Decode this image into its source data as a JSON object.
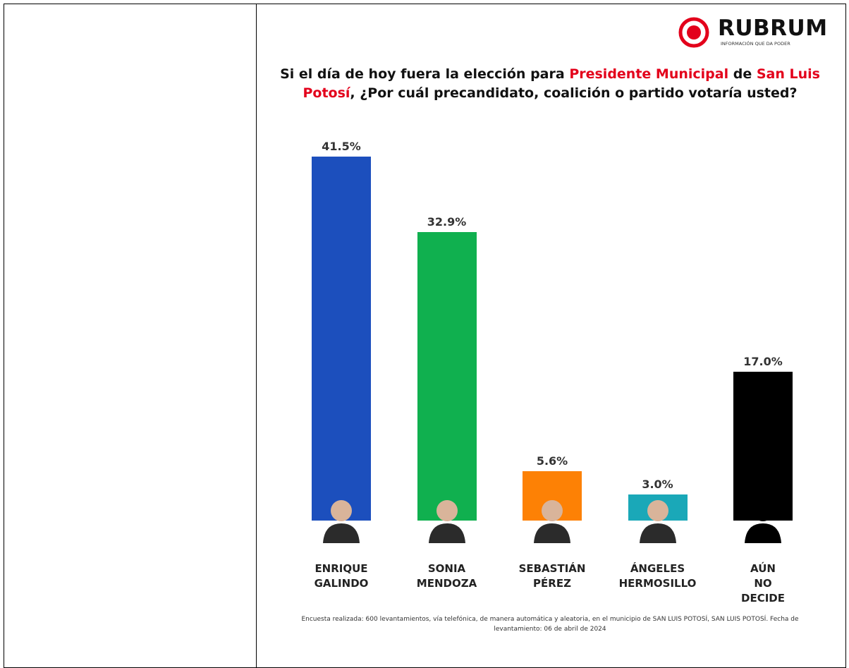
{
  "brand": {
    "name": "RUBRUM",
    "tagline": "INFORMACIÓN QUE DA PODER"
  },
  "chart_data": {
    "type": "bar",
    "title_parts": [
      {
        "text": "Si el día de hoy fuera la elección para ",
        "color": "#111111"
      },
      {
        "text": "Presidente Municipal",
        "color": "#e3001b"
      },
      {
        "text": " de ",
        "color": "#111111"
      },
      {
        "text": "San Luis Potosí",
        "color": "#e3001b"
      },
      {
        "text": ", ¿Por cuál precandidato, coalición o partido votaría usted?",
        "color": "#111111"
      }
    ],
    "categories": [
      "ENRIQUE GALINDO",
      "SONIA MENDOZA",
      "SEBASTIÁN PÉREZ",
      "ÁNGELES HERMOSILLO",
      "AÚN NO DECIDE"
    ],
    "values": [
      41.5,
      32.9,
      5.6,
      3.0,
      17.0
    ],
    "value_labels": [
      "41.5%",
      "32.9%",
      "5.6%",
      "3.0%",
      "17.0%"
    ],
    "colors": [
      "#1c4fbd",
      "#10b04f",
      "#fd8105",
      "#1aa8b8",
      "#000000"
    ],
    "footnote": "Encuesta realizada: 600 levantamientos, vía telefónica, de manera automática y aleatoria, en el municipio de SAN LUIS POTOSÍ, SAN LUIS POTOSÍ. Fecha de levantamiento: 06 de abril de 2024"
  }
}
